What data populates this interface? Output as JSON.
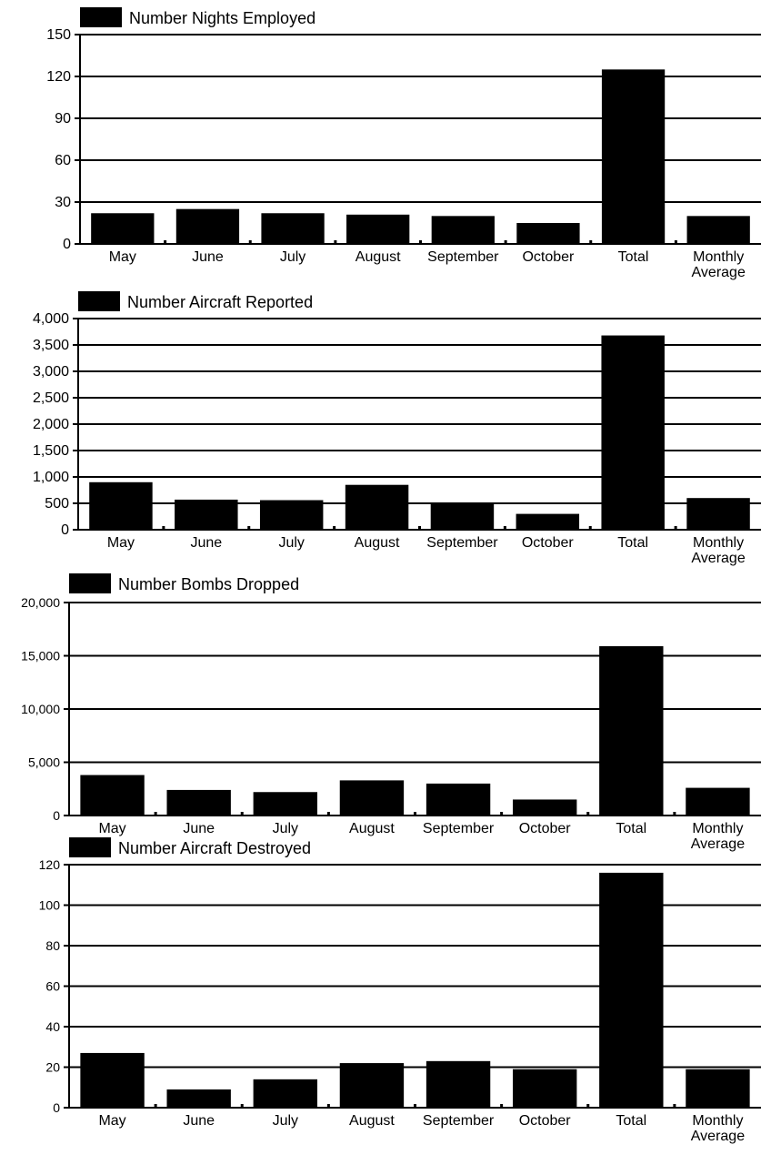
{
  "chart_data": [
    {
      "type": "bar",
      "categories": [
        "May",
        "June",
        "July",
        "August",
        "September",
        "October",
        "Total",
        "Monthly Average"
      ],
      "series": [
        {
          "name": "Number Nights Employed",
          "values": [
            22,
            25,
            22,
            21,
            20,
            15,
            125,
            20
          ]
        }
      ],
      "yticks": [
        "0",
        "30",
        "60",
        "90",
        "120",
        "150"
      ],
      "ylim": [
        0,
        150
      ],
      "grid": true,
      "legend": "top-left"
    },
    {
      "type": "bar",
      "categories": [
        "May",
        "June",
        "July",
        "August",
        "September",
        "October",
        "Total",
        "Monthly Average"
      ],
      "series": [
        {
          "name": "Number Aircraft Reported",
          "values": [
            900,
            570,
            560,
            850,
            490,
            300,
            3680,
            600
          ]
        }
      ],
      "yticks": [
        "0",
        "500",
        "1,000",
        "1,500",
        "2,000",
        "2,500",
        "3,000",
        "3,500",
        "4,000"
      ],
      "ylim": [
        0,
        4000
      ],
      "grid": true,
      "legend": "top-left"
    },
    {
      "type": "bar",
      "categories": [
        "May",
        "June",
        "July",
        "August",
        "September",
        "October",
        "Total",
        "Monthly Average"
      ],
      "series": [
        {
          "name": "Number Bombs Dropped",
          "values": [
            3800,
            2400,
            2200,
            3300,
            3000,
            1500,
            15900,
            2600
          ]
        }
      ],
      "yticks": [
        "0",
        "5,000",
        "10,000",
        "15,000",
        "20,000"
      ],
      "ylim": [
        0,
        20000
      ],
      "grid": true,
      "legend": "top-left"
    },
    {
      "type": "bar",
      "categories": [
        "May",
        "June",
        "July",
        "August",
        "September",
        "October",
        "Total",
        "Monthly Average"
      ],
      "series": [
        {
          "name": "Number Aircraft Destroyed",
          "values": [
            27,
            9,
            14,
            22,
            23,
            19,
            116,
            19
          ]
        }
      ],
      "yticks": [
        "0",
        "20",
        "40",
        "60",
        "80",
        "100",
        "120"
      ],
      "ylim": [
        0,
        120
      ],
      "grid": true,
      "legend": "top-left"
    }
  ],
  "colors": {
    "bar": "#000000",
    "grid": "#000000",
    "background": "#ffffff"
  }
}
